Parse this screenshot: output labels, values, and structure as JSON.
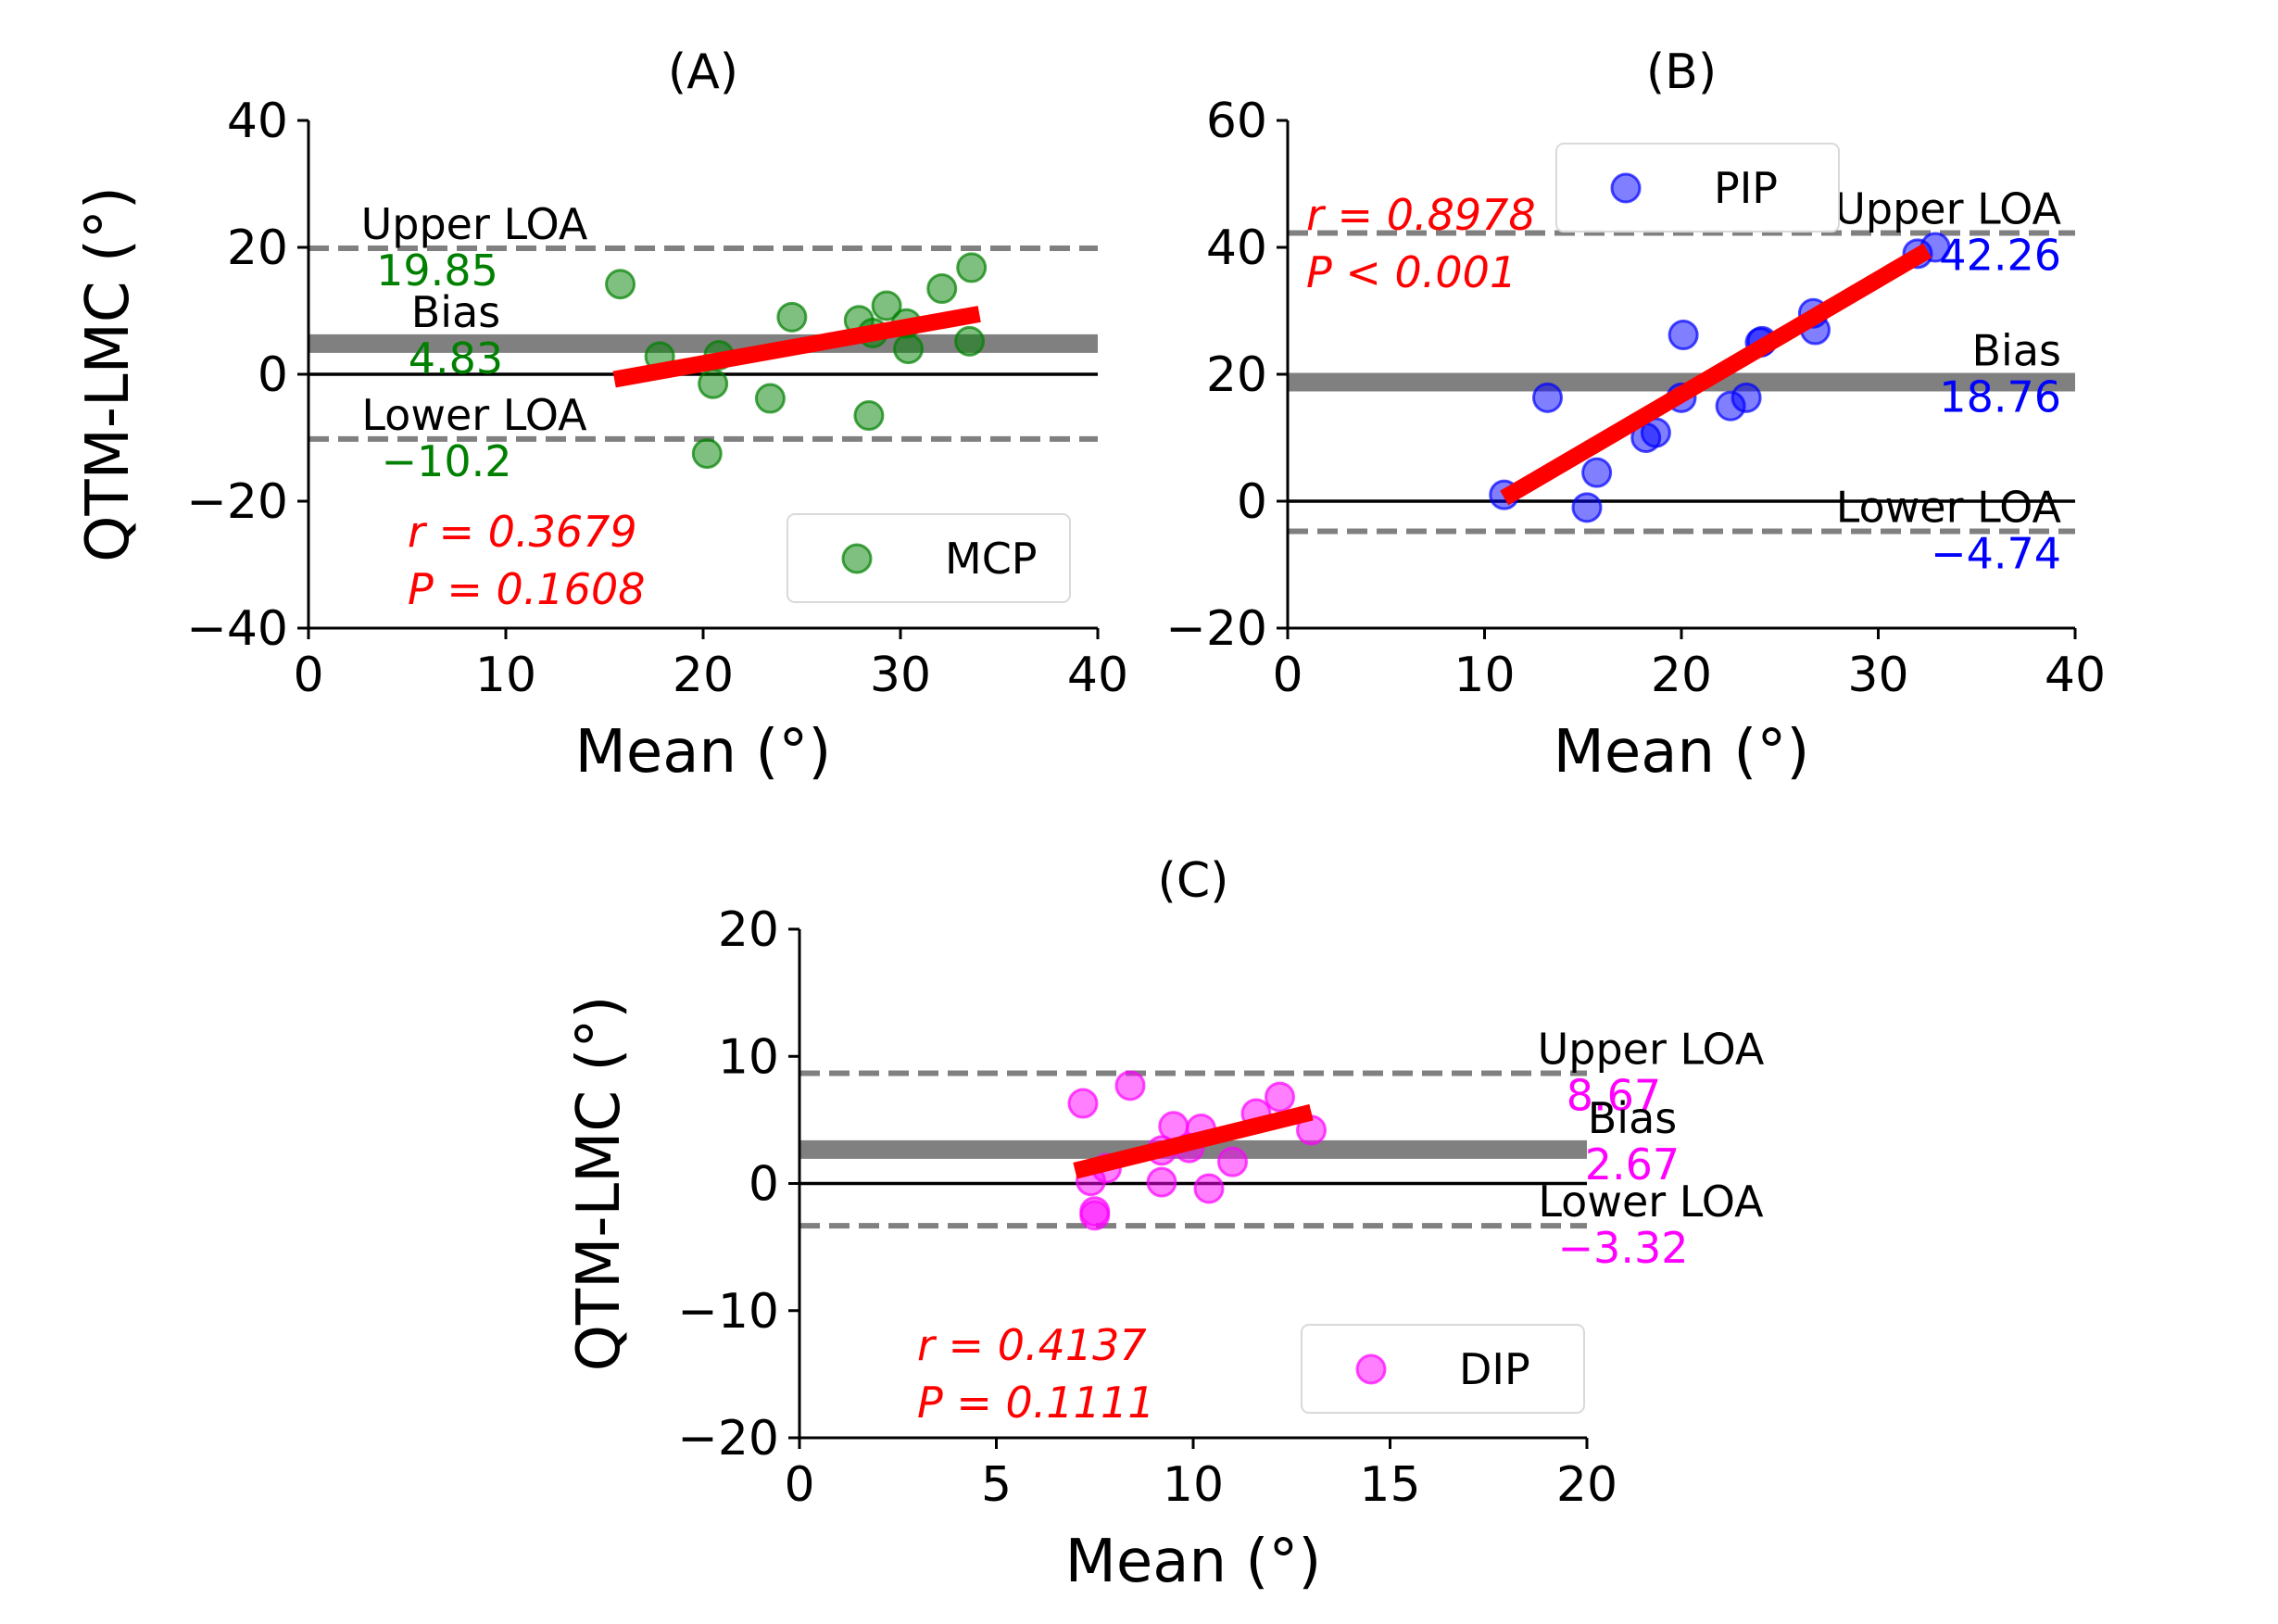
{
  "chart_data": [
    {
      "type": "scatter",
      "title": "(A)",
      "xlabel": "Mean (°)",
      "ylabel": "QTM-LMC (°)",
      "xlim": [
        0,
        40
      ],
      "ylim": [
        -40,
        40
      ],
      "xticks": [
        0,
        10,
        20,
        30,
        40
      ],
      "yticks": [
        40,
        20,
        0,
        -20,
        -40
      ],
      "ytick_labels": [
        "40",
        "20",
        "0",
        "−20",
        "−40"
      ],
      "color": "#008000",
      "legend": {
        "label": "MCP",
        "position": "lower-right"
      },
      "series": [
        {
          "name": "MCP",
          "points": [
            [
              15.8,
              14.2
            ],
            [
              17.8,
              2.8
            ],
            [
              20.2,
              -12.5
            ],
            [
              20.5,
              -1.5
            ],
            [
              20.8,
              3.0
            ],
            [
              23.4,
              -3.8
            ],
            [
              24.5,
              9.0
            ],
            [
              27.9,
              8.5
            ],
            [
              28.4,
              -6.5
            ],
            [
              28.6,
              6.5
            ],
            [
              29.3,
              10.8
            ],
            [
              30.3,
              8.0
            ],
            [
              30.4,
              4.0
            ],
            [
              32.1,
              13.5
            ],
            [
              33.6,
              16.8
            ],
            [
              33.5,
              5.2
            ]
          ]
        }
      ],
      "regression": {
        "x": [
          15.5,
          34.0
        ],
        "y": [
          -0.8,
          9.5
        ]
      },
      "bias": {
        "label": "Bias",
        "value": "4.83",
        "y": 4.83
      },
      "upper_loa": {
        "label": "Upper LOA",
        "value": "19.85",
        "y": 19.85
      },
      "lower_loa": {
        "label": "Lower LOA",
        "value": "−10.2",
        "y": -10.2
      },
      "stats": {
        "r": "r = 0.3679",
        "p": "P = 0.1608"
      }
    },
    {
      "type": "scatter",
      "title": "(B)",
      "xlabel": "Mean (°)",
      "ylabel": "",
      "xlim": [
        0,
        40
      ],
      "ylim": [
        -20,
        60
      ],
      "xticks": [
        0,
        10,
        20,
        30,
        40
      ],
      "yticks": [
        60,
        40,
        20,
        0,
        -20
      ],
      "ytick_labels": [
        "60",
        "40",
        "20",
        "0",
        "−20"
      ],
      "color": "#0000ff",
      "legend": {
        "label": "PIP",
        "position": "upper-center"
      },
      "series": [
        {
          "name": "PIP",
          "points": [
            [
              11.0,
              1.0
            ],
            [
              13.2,
              16.3
            ],
            [
              15.2,
              -1.0
            ],
            [
              15.7,
              4.5
            ],
            [
              18.2,
              10.0
            ],
            [
              18.7,
              10.8
            ],
            [
              20.0,
              16.3
            ],
            [
              20.1,
              26.2
            ],
            [
              22.5,
              15.0
            ],
            [
              23.3,
              16.3
            ],
            [
              24.0,
              25.0
            ],
            [
              24.1,
              25.2
            ],
            [
              26.7,
              29.6
            ],
            [
              26.8,
              27.0
            ],
            [
              32.0,
              39.0
            ],
            [
              32.9,
              40.0
            ]
          ]
        }
      ],
      "regression": {
        "x": [
          11.0,
          32.5
        ],
        "y": [
          0.5,
          39.5
        ]
      },
      "bias": {
        "label": "Bias",
        "value": "18.76",
        "y": 18.76
      },
      "upper_loa": {
        "label": "Upper LOA",
        "value": "42.26",
        "y": 42.26
      },
      "lower_loa": {
        "label": "Lower LOA",
        "value": "−4.74",
        "y": -4.74
      },
      "stats": {
        "r": "r = 0.8978",
        "p": "P < 0.001"
      }
    },
    {
      "type": "scatter",
      "title": "(C)",
      "xlabel": "Mean (°)",
      "ylabel": "QTM-LMC (°)",
      "xlim": [
        0,
        20
      ],
      "ylim": [
        -20,
        20
      ],
      "xticks": [
        0,
        5,
        10,
        15,
        20
      ],
      "yticks": [
        20,
        10,
        0,
        -10,
        -20
      ],
      "ytick_labels": [
        "20",
        "10",
        "0",
        "−10",
        "−20"
      ],
      "color": "#ff00ff",
      "legend": {
        "label": "DIP",
        "position": "lower-right"
      },
      "series": [
        {
          "name": "DIP",
          "points": [
            [
              7.2,
              6.3
            ],
            [
              7.4,
              0.2
            ],
            [
              7.5,
              -2.5
            ],
            [
              7.5,
              -2.2
            ],
            [
              8.4,
              7.7
            ],
            [
              9.2,
              0.1
            ],
            [
              9.2,
              2.6
            ],
            [
              9.5,
              4.5
            ],
            [
              9.9,
              2.8
            ],
            [
              10.2,
              4.3
            ],
            [
              10.4,
              -0.4
            ],
            [
              11.0,
              1.7
            ],
            [
              11.6,
              5.5
            ],
            [
              12.2,
              6.8
            ],
            [
              13.0,
              4.2
            ],
            [
              7.8,
              1.2
            ]
          ]
        }
      ],
      "regression": {
        "x": [
          7.0,
          13.0
        ],
        "y": [
          1.0,
          5.6
        ]
      },
      "bias": {
        "label": "Bias",
        "value": "2.67",
        "y": 2.67
      },
      "upper_loa": {
        "label": "Upper LOA",
        "value": "8.67",
        "y": 8.67
      },
      "lower_loa": {
        "label": "Lower LOA",
        "value": "−3.32",
        "y": -3.32
      },
      "stats": {
        "r": "r = 0.4137",
        "p": "P = 0.1111"
      }
    }
  ]
}
